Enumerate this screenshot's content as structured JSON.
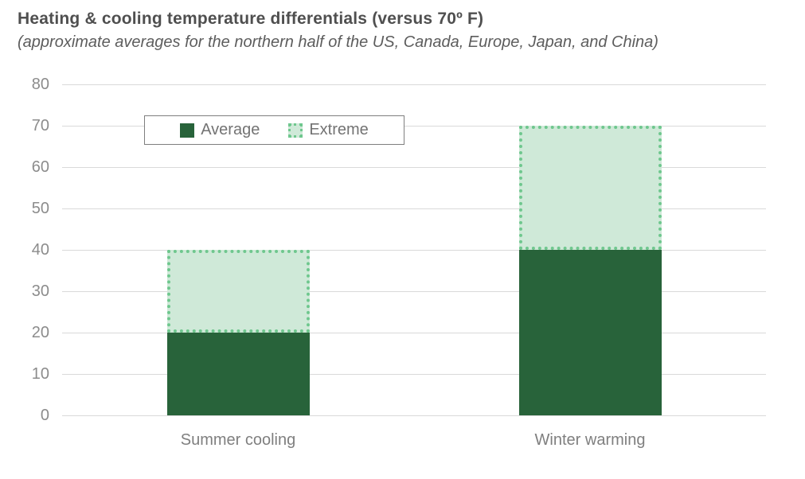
{
  "chart_data": {
    "type": "bar",
    "stacked": true,
    "title": "Heating & cooling temperature differentials (versus 70º F)",
    "subtitle": "(approximate averages for the northern half of the US, Canada, Europe, Japan, and China)",
    "categories": [
      "Summer cooling",
      "Winter warming"
    ],
    "series": [
      {
        "name": "Average",
        "values": [
          20,
          40
        ],
        "style": "solid"
      },
      {
        "name": "Extreme",
        "values": [
          20,
          30
        ],
        "style": "dotted"
      }
    ],
    "stack_totals": [
      40,
      70
    ],
    "xlabel": "",
    "ylabel": "",
    "ylim": [
      0,
      80
    ],
    "yticks": [
      0,
      10,
      20,
      30,
      40,
      50,
      60,
      70,
      80
    ],
    "grid": true,
    "legend": {
      "position": "top-left-inset",
      "entries": [
        "Average",
        "Extreme"
      ]
    }
  },
  "colors": {
    "average_fill": "#28633a",
    "extreme_fill": "#cfe9d8",
    "extreme_border": "#6fc78e",
    "gridline": "#d9d9d9",
    "tick_text": "#8c8c8c",
    "axis_label_text": "#7f7f7f",
    "legend_text": "#737373",
    "legend_border": "#7f7f7f",
    "title_text": "#4f4f4f",
    "background": "#ffffff"
  }
}
